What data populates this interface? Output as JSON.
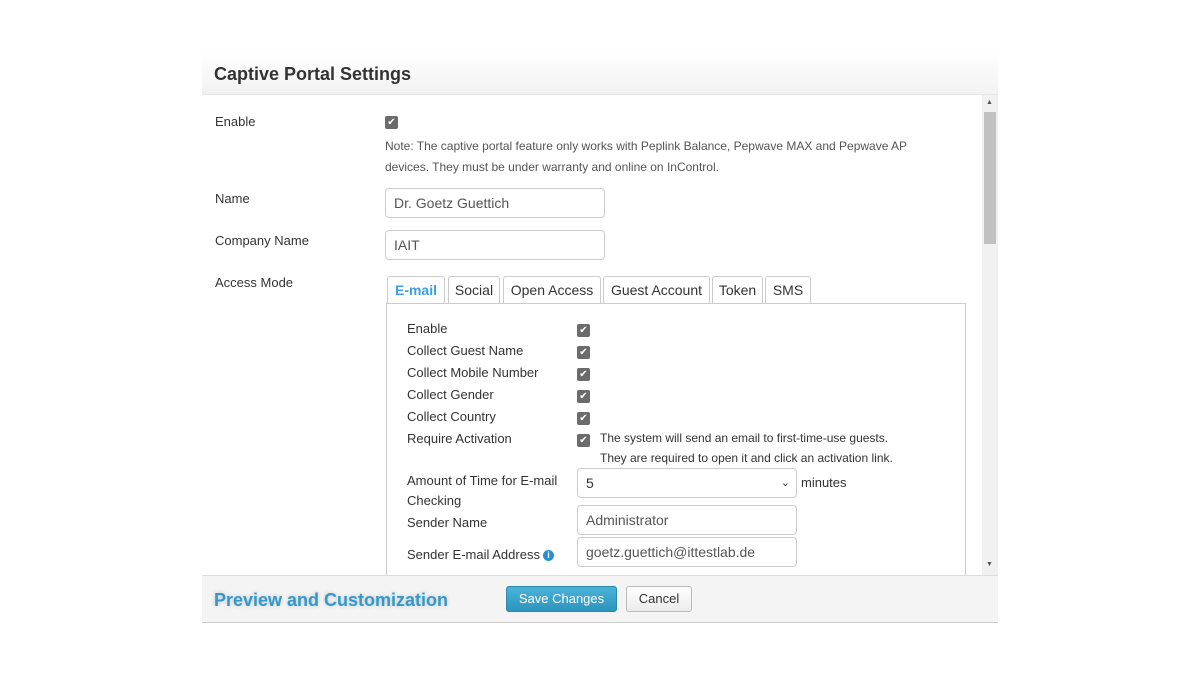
{
  "title": "Captive Portal Settings",
  "enable": {
    "label": "Enable",
    "checked": true,
    "note_line1": "Note: The captive portal feature only works with Peplink Balance, Pepwave MAX and Pepwave AP",
    "note_line2": "devices. They must be under warranty and online on InControl."
  },
  "name": {
    "label": "Name",
    "value": "Dr. Goetz Guettich"
  },
  "company": {
    "label": "Company Name",
    "value": "IAIT"
  },
  "access_mode": {
    "label": "Access Mode",
    "tabs": [
      "E-mail",
      "Social",
      "Open Access",
      "Guest Account",
      "Token",
      "SMS"
    ],
    "active_tab": "E-mail"
  },
  "email_tab": {
    "checks": [
      {
        "label": "Enable",
        "checked": true
      },
      {
        "label": "Collect Guest Name",
        "checked": true
      },
      {
        "label": "Collect Mobile Number",
        "checked": true
      },
      {
        "label": "Collect Gender",
        "checked": true
      },
      {
        "label": "Collect Country",
        "checked": true
      },
      {
        "label": "Require Activation",
        "checked": true
      }
    ],
    "activation_note1": "The system will send an email to first-time-use guests.",
    "activation_note2": "They are required to open it and click an activation link.",
    "time_label1": "Amount of Time for E-mail",
    "time_label2": "Checking",
    "time_value": "5",
    "time_unit": "minutes",
    "sender_name_label": "Sender Name",
    "sender_name": "Administrator",
    "sender_email_label": "Sender E-mail Address",
    "sender_email": "goetz.guettich@ittestlab.de"
  },
  "footer": {
    "preview": "Preview and Customization",
    "save": "Save Changes",
    "cancel": "Cancel"
  },
  "colors": {
    "accent": "#3399cc",
    "active_tab": "#3aa0e8",
    "save_button": "#2d94bd"
  },
  "icons": {
    "info": "info-circle-icon",
    "check": "checkmark-icon"
  }
}
